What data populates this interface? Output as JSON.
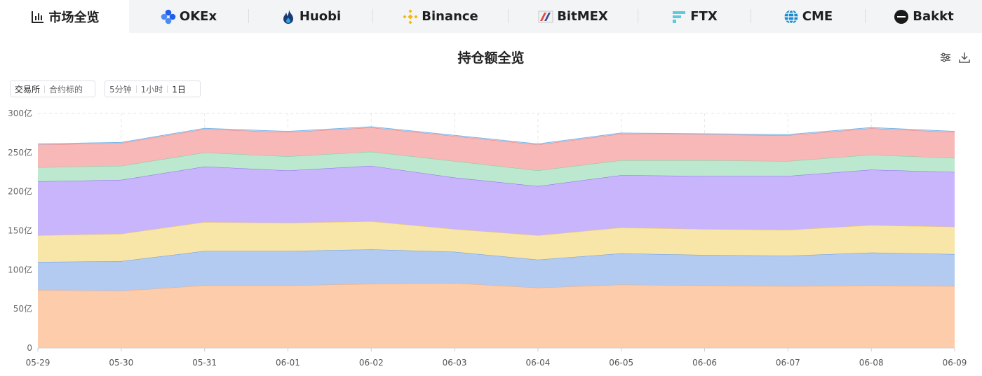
{
  "tabs": [
    {
      "label": "市场全览",
      "icon": "bar-chart-icon",
      "active": true
    },
    {
      "label": "OKEx",
      "icon": "okex-logo-icon",
      "active": false
    },
    {
      "label": "Huobi",
      "icon": "huobi-flame-icon",
      "active": false
    },
    {
      "label": "Binance",
      "icon": "binance-logo-icon",
      "active": false
    },
    {
      "label": "BitMEX",
      "icon": "bitmex-logo-icon",
      "active": false
    },
    {
      "label": "FTX",
      "icon": "ftx-logo-icon",
      "active": false
    },
    {
      "label": "CME",
      "icon": "cme-globe-icon",
      "active": false
    },
    {
      "label": "Bakkt",
      "icon": "bakkt-logo-icon",
      "active": false
    }
  ],
  "header": {
    "title": "持仓额全览",
    "settings_icon": "sliders-icon",
    "download_icon": "download-icon"
  },
  "filters": {
    "group_by": [
      "交易所",
      "合约标的"
    ],
    "group_by_selected": "交易所",
    "interval": [
      "5分钟",
      "1小时",
      "1日"
    ],
    "interval_selected": "1日"
  },
  "chart_data": {
    "type": "area",
    "stacked": true,
    "x": [
      "05-29",
      "05-30",
      "05-31",
      "06-01",
      "06-02",
      "06-03",
      "06-04",
      "06-05",
      "06-06",
      "06-07",
      "06-08",
      "06-09"
    ],
    "y_ticks": [
      "0",
      "50亿",
      "100亿",
      "150亿",
      "200亿",
      "250亿",
      "300亿"
    ],
    "ylim": [
      0,
      300
    ],
    "y_unit": "亿",
    "grid": true,
    "legend_position": "top-right",
    "series": [
      {
        "name": "OKEx",
        "color": "#f9a96e",
        "fill": "#fdccaa",
        "values": [
          74,
          73,
          80,
          80,
          82,
          83,
          77,
          81,
          80,
          79,
          80,
          79
        ]
      },
      {
        "name": "Huobi",
        "color": "#6a9be0",
        "fill": "#b3cbf1",
        "values": [
          36,
          38,
          44,
          44,
          44,
          40,
          36,
          40,
          39,
          39,
          42,
          41
        ]
      },
      {
        "name": "Binance",
        "color": "#f4c95c",
        "fill": "#f8e5a8",
        "values": [
          34,
          35,
          37,
          36,
          36,
          29,
          31,
          33,
          33,
          33,
          35,
          35
        ]
      },
      {
        "name": "BitMEX",
        "color": "#8c6cf0",
        "fill": "#c9b5fc",
        "values": [
          69,
          69,
          71,
          67,
          71,
          66,
          63,
          67,
          68,
          69,
          71,
          70
        ]
      },
      {
        "name": "FTX",
        "color": "#7fce9e",
        "fill": "#bce8d0",
        "values": [
          18,
          18,
          18,
          18,
          18,
          21,
          20,
          19,
          20,
          19,
          19,
          18
        ]
      },
      {
        "name": "CME",
        "color": "#ee7777",
        "fill": "#f8b8b8",
        "values": [
          29,
          29,
          30,
          31,
          31,
          32,
          33,
          34,
          33,
          33,
          34,
          33
        ]
      },
      {
        "name": "Bakkt",
        "color": "#7ab6e6",
        "fill": "#cfe5f7",
        "values": [
          1,
          1,
          1,
          1,
          1,
          1,
          1,
          1,
          1,
          1,
          1,
          1
        ]
      }
    ]
  }
}
